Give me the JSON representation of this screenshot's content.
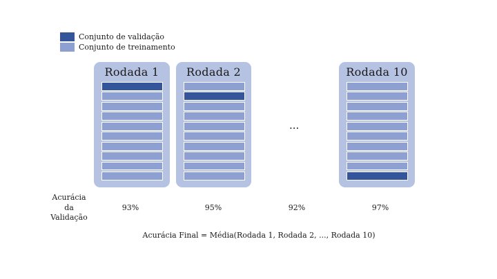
{
  "colors": {
    "validation": "#34559a",
    "training": "#8ea0d2",
    "card": "#b6c2e2",
    "border": "#ffffff"
  },
  "legend": {
    "validation_label": "Conjunto de validação",
    "training_label": "Conjunto de treinamento"
  },
  "rounds": [
    {
      "title": "Rodada 1",
      "validation_fold": 1,
      "accuracy": "93%"
    },
    {
      "title": "Rodada 2",
      "validation_fold": 2,
      "accuracy": "95%"
    },
    {
      "title": "Rodada 10",
      "validation_fold": 10,
      "accuracy": "97%"
    }
  ],
  "folds_per_round": 10,
  "ellipsis": {
    "label": "...",
    "accuracy": "92%"
  },
  "accuracy_heading": [
    "Acurácia",
    "da",
    "Validação"
  ],
  "formula": "Acurácia Final = Média(Rodada 1, Rodada 2, ..., Rodada 10)"
}
